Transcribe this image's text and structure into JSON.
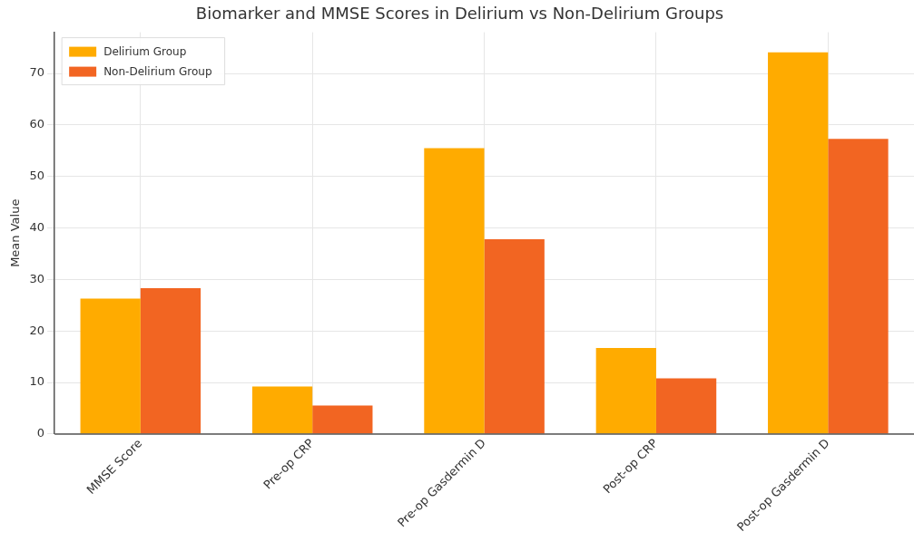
{
  "chart_data": {
    "type": "bar",
    "title": "Biomarker and MMSE Scores in Delirium vs Non-Delirium Groups",
    "ylabel": "Mean Value",
    "categories": [
      "MMSE Score",
      "Pre-op CRP",
      "Pre-op Gasdermin D",
      "Post-op CRP",
      "Post-op Gasdermin D"
    ],
    "series": [
      {
        "name": "Delirium Group",
        "color": "#ffab00",
        "values": [
          26.3,
          9.2,
          55.5,
          16.7,
          74.1
        ]
      },
      {
        "name": "Non-Delirium Group",
        "color": "#f26522",
        "values": [
          28.3,
          5.5,
          37.8,
          10.8,
          57.3
        ]
      }
    ],
    "ylim": [
      0,
      78
    ],
    "yticks": [
      0,
      10,
      20,
      30,
      40,
      50,
      60,
      70
    ],
    "grid": true,
    "legend": "top left"
  }
}
